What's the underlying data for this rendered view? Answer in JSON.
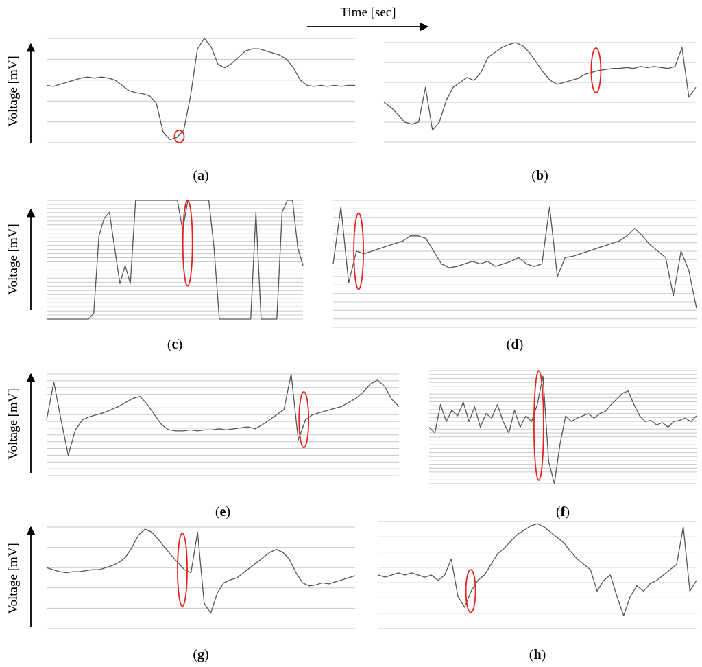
{
  "time_label": "Time [sec]",
  "ylabel": "Voltage [mV]",
  "colors": {
    "trace": "#555555",
    "grid": "#c8c8c8",
    "highlight": "#e8231f",
    "axis": "#000000"
  },
  "chart_data": [
    {
      "type": "line",
      "label": "(a)",
      "letter": "a",
      "grid_lines": 6,
      "ylim": [
        0,
        1
      ],
      "y": [
        0.55,
        0.54,
        0.56,
        0.58,
        0.6,
        0.62,
        0.63,
        0.62,
        0.63,
        0.62,
        0.6,
        0.55,
        0.5,
        0.48,
        0.47,
        0.45,
        0.38,
        0.1,
        0.03,
        0.05,
        0.12,
        0.45,
        0.9,
        1.0,
        0.92,
        0.75,
        0.72,
        0.76,
        0.82,
        0.88,
        0.9,
        0.9,
        0.88,
        0.86,
        0.84,
        0.8,
        0.72,
        0.6,
        0.55,
        0.54,
        0.55,
        0.54,
        0.55,
        0.54,
        0.55,
        0.55
      ],
      "highlight": [
        0.43,
        0.12
      ]
    },
    {
      "type": "line",
      "label": "(b)",
      "letter": "b",
      "grid_lines": 6,
      "ylim": [
        0,
        1
      ],
      "y": [
        0.4,
        0.35,
        0.28,
        0.2,
        0.18,
        0.2,
        0.55,
        0.12,
        0.2,
        0.42,
        0.55,
        0.6,
        0.65,
        0.62,
        0.7,
        0.85,
        0.9,
        0.95,
        0.98,
        1.0,
        0.97,
        0.9,
        0.8,
        0.7,
        0.62,
        0.58,
        0.6,
        0.62,
        0.64,
        0.68,
        0.7,
        0.72,
        0.73,
        0.74,
        0.74,
        0.75,
        0.74,
        0.76,
        0.75,
        0.76,
        0.75,
        0.74,
        0.76,
        0.95,
        0.45,
        0.55
      ],
      "highlight": [
        0.68,
        0.45
      ]
    },
    {
      "type": "line",
      "label": "(c)",
      "letter": "c",
      "grid_lines": 30,
      "ylim": [
        0,
        1
      ],
      "y": [
        0.0,
        0.0,
        0.0,
        0.0,
        0.0,
        0.0,
        0.0,
        0.0,
        0.0,
        0.05,
        0.7,
        0.85,
        0.9,
        0.6,
        0.3,
        0.45,
        0.3,
        1.0,
        1.0,
        1.0,
        1.0,
        1.0,
        1.0,
        1.0,
        1.0,
        1.0,
        0.75,
        1.0,
        1.0,
        1.0,
        1.0,
        1.0,
        0.6,
        0.0,
        0.0,
        0.0,
        0.0,
        0.0,
        0.0,
        0.0,
        0.9,
        0.0,
        0.0,
        0.0,
        0.0,
        0.9,
        1.0,
        1.0,
        0.6,
        0.45
      ],
      "highlight": [
        0.55,
        0.72
      ]
    },
    {
      "type": "line",
      "label": "(d)",
      "letter": "d",
      "grid_lines": 16,
      "ylim": [
        0,
        1
      ],
      "y": [
        0.5,
        0.95,
        0.35,
        0.6,
        0.58,
        0.6,
        0.62,
        0.64,
        0.66,
        0.68,
        0.72,
        0.72,
        0.7,
        0.6,
        0.5,
        0.47,
        0.48,
        0.5,
        0.52,
        0.5,
        0.52,
        0.48,
        0.5,
        0.52,
        0.55,
        0.5,
        0.48,
        0.5,
        0.95,
        0.4,
        0.55,
        0.56,
        0.58,
        0.6,
        0.62,
        0.64,
        0.66,
        0.68,
        0.72,
        0.78,
        0.72,
        0.65,
        0.6,
        0.55,
        0.25,
        0.6,
        0.45,
        0.15
      ],
      "highlight": [
        0.07,
        0.6
      ]
    },
    {
      "type": "line",
      "label": "(e)",
      "letter": "e",
      "grid_lines": 16,
      "ylim": [
        0,
        1
      ],
      "y": [
        0.55,
        0.92,
        0.55,
        0.2,
        0.45,
        0.55,
        0.58,
        0.6,
        0.62,
        0.65,
        0.68,
        0.72,
        0.76,
        0.78,
        0.7,
        0.6,
        0.5,
        0.45,
        0.44,
        0.44,
        0.45,
        0.44,
        0.45,
        0.45,
        0.46,
        0.45,
        0.46,
        0.47,
        0.48,
        0.46,
        0.5,
        0.55,
        0.6,
        0.65,
        1.0,
        0.35,
        0.55,
        0.6,
        0.62,
        0.64,
        0.66,
        0.68,
        0.72,
        0.76,
        0.82,
        0.9,
        0.94,
        0.88,
        0.75,
        0.68
      ],
      "highlight": [
        0.73,
        0.55
      ]
    },
    {
      "type": "line",
      "label": "(f)",
      "letter": "f",
      "grid_lines": 30,
      "ylim": [
        0,
        1
      ],
      "y": [
        0.5,
        0.45,
        0.7,
        0.55,
        0.65,
        0.6,
        0.72,
        0.55,
        0.68,
        0.5,
        0.62,
        0.58,
        0.7,
        0.55,
        0.45,
        0.65,
        0.5,
        0.6,
        0.55,
        0.7,
        0.95,
        0.2,
        0.0,
        0.35,
        0.6,
        0.55,
        0.58,
        0.6,
        0.62,
        0.58,
        0.62,
        0.64,
        0.7,
        0.75,
        0.8,
        0.82,
        0.7,
        0.6,
        0.55,
        0.56,
        0.52,
        0.54,
        0.5,
        0.55,
        0.56,
        0.58,
        0.55,
        0.6
      ],
      "highlight": [
        0.41,
        0.97
      ]
    },
    {
      "type": "line",
      "label": "(g)",
      "letter": "g",
      "grid_lines": 6,
      "ylim": [
        0,
        1
      ],
      "y": [
        0.6,
        0.58,
        0.56,
        0.55,
        0.56,
        0.56,
        0.57,
        0.58,
        0.58,
        0.6,
        0.62,
        0.65,
        0.7,
        0.8,
        0.92,
        0.98,
        0.95,
        0.88,
        0.8,
        0.72,
        0.65,
        0.58,
        0.55,
        0.95,
        0.25,
        0.15,
        0.35,
        0.45,
        0.48,
        0.5,
        0.55,
        0.6,
        0.65,
        0.7,
        0.75,
        0.78,
        0.75,
        0.68,
        0.55,
        0.45,
        0.42,
        0.43,
        0.45,
        0.44,
        0.46,
        0.48,
        0.5,
        0.52
      ],
      "highlight": [
        0.44,
        0.72
      ]
    },
    {
      "type": "line",
      "label": "(h)",
      "letter": "h",
      "grid_lines": 8,
      "ylim": [
        0,
        1
      ],
      "y": [
        0.5,
        0.48,
        0.5,
        0.52,
        0.5,
        0.52,
        0.5,
        0.48,
        0.5,
        0.45,
        0.5,
        0.65,
        0.3,
        0.2,
        0.35,
        0.45,
        0.5,
        0.6,
        0.7,
        0.75,
        0.82,
        0.88,
        0.92,
        0.96,
        0.98,
        0.95,
        0.9,
        0.85,
        0.8,
        0.72,
        0.65,
        0.6,
        0.55,
        0.35,
        0.45,
        0.5,
        0.3,
        0.12,
        0.3,
        0.4,
        0.35,
        0.42,
        0.45,
        0.5,
        0.55,
        0.6,
        0.95,
        0.35,
        0.45
      ],
      "highlight": [
        0.29,
        0.4
      ]
    }
  ]
}
